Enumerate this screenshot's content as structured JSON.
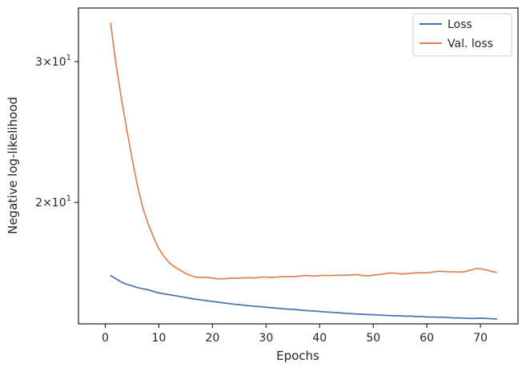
{
  "chart_data": {
    "type": "line",
    "title": "",
    "xlabel": "Epochs",
    "ylabel": "Negative log-likelihood",
    "yscale": "log",
    "xlim": [
      -5,
      77
    ],
    "ylim": [
      14.1,
      35.0
    ],
    "grid": false,
    "legend_placement": "top-right",
    "x_ticks": [
      {
        "value": 0,
        "label": "0"
      },
      {
        "value": 10,
        "label": "10"
      },
      {
        "value": 20,
        "label": "20"
      },
      {
        "value": 30,
        "label": "30"
      },
      {
        "value": 40,
        "label": "40"
      },
      {
        "value": 50,
        "label": "50"
      },
      {
        "value": 60,
        "label": "60"
      },
      {
        "value": 70,
        "label": "70"
      }
    ],
    "y_ticks": [
      {
        "value": 20,
        "base": "2",
        "exp": "1"
      },
      {
        "value": 30,
        "base": "3",
        "exp": "1"
      }
    ],
    "series": [
      {
        "name": "Loss",
        "color": "#4c72b0",
        "x": [
          1,
          2,
          3,
          4,
          5,
          6,
          7,
          8,
          9,
          10,
          11,
          12,
          13,
          14,
          15,
          16,
          17,
          18,
          19,
          20,
          21,
          22,
          23,
          24,
          25,
          26,
          27,
          28,
          29,
          30,
          31,
          32,
          33,
          34,
          35,
          36,
          37,
          38,
          39,
          40,
          41,
          42,
          43,
          44,
          45,
          46,
          47,
          48,
          49,
          50,
          51,
          52,
          53,
          54,
          55,
          56,
          57,
          58,
          59,
          60,
          61,
          62,
          63,
          64,
          65,
          66,
          67,
          68,
          69,
          70,
          71,
          72,
          73
        ],
        "values": [
          16.2,
          16.05,
          15.9,
          15.8,
          15.73,
          15.65,
          15.6,
          15.55,
          15.48,
          15.41,
          15.37,
          15.33,
          15.29,
          15.25,
          15.21,
          15.17,
          15.13,
          15.1,
          15.07,
          15.04,
          15.01,
          14.98,
          14.95,
          14.92,
          14.9,
          14.87,
          14.85,
          14.83,
          14.81,
          14.79,
          14.77,
          14.75,
          14.73,
          14.71,
          14.7,
          14.68,
          14.66,
          14.64,
          14.63,
          14.61,
          14.59,
          14.58,
          14.56,
          14.55,
          14.53,
          14.52,
          14.5,
          14.5,
          14.48,
          14.48,
          14.46,
          14.45,
          14.44,
          14.43,
          14.43,
          14.41,
          14.42,
          14.4,
          14.4,
          14.38,
          14.38,
          14.37,
          14.37,
          14.36,
          14.34,
          14.34,
          14.33,
          14.32,
          14.32,
          14.33,
          14.32,
          14.31,
          14.3
        ]
      },
      {
        "name": "Val. loss",
        "color": "#dd8452",
        "x": [
          1,
          2,
          3,
          4,
          5,
          6,
          7,
          8,
          9,
          10,
          11,
          12,
          13,
          14,
          15,
          16,
          17,
          18,
          19,
          20,
          21,
          22,
          23,
          24,
          25,
          26,
          27,
          28,
          29,
          30,
          31,
          32,
          33,
          34,
          35,
          36,
          37,
          38,
          39,
          40,
          41,
          42,
          43,
          44,
          45,
          46,
          47,
          48,
          49,
          50,
          51,
          52,
          53,
          54,
          55,
          56,
          57,
          58,
          59,
          60,
          61,
          62,
          63,
          64,
          65,
          66,
          67,
          68,
          69,
          70,
          71,
          72,
          73
        ],
        "values": [
          33.5,
          29.8,
          27.0,
          24.7,
          22.7,
          21.0,
          19.7,
          18.8,
          18.1,
          17.5,
          17.1,
          16.8,
          16.6,
          16.45,
          16.3,
          16.2,
          16.12,
          16.12,
          16.12,
          16.08,
          16.05,
          16.05,
          16.07,
          16.08,
          16.08,
          16.1,
          16.1,
          16.09,
          16.13,
          16.13,
          16.11,
          16.13,
          16.16,
          16.15,
          16.15,
          16.17,
          16.2,
          16.2,
          16.18,
          16.2,
          16.21,
          16.2,
          16.21,
          16.22,
          16.22,
          16.23,
          16.25,
          16.2,
          16.19,
          16.22,
          16.25,
          16.28,
          16.32,
          16.32,
          16.28,
          16.28,
          16.31,
          16.33,
          16.33,
          16.33,
          16.36,
          16.4,
          16.4,
          16.38,
          16.38,
          16.36,
          16.38,
          16.45,
          16.52,
          16.52,
          16.47,
          16.4,
          16.35
        ]
      }
    ]
  }
}
